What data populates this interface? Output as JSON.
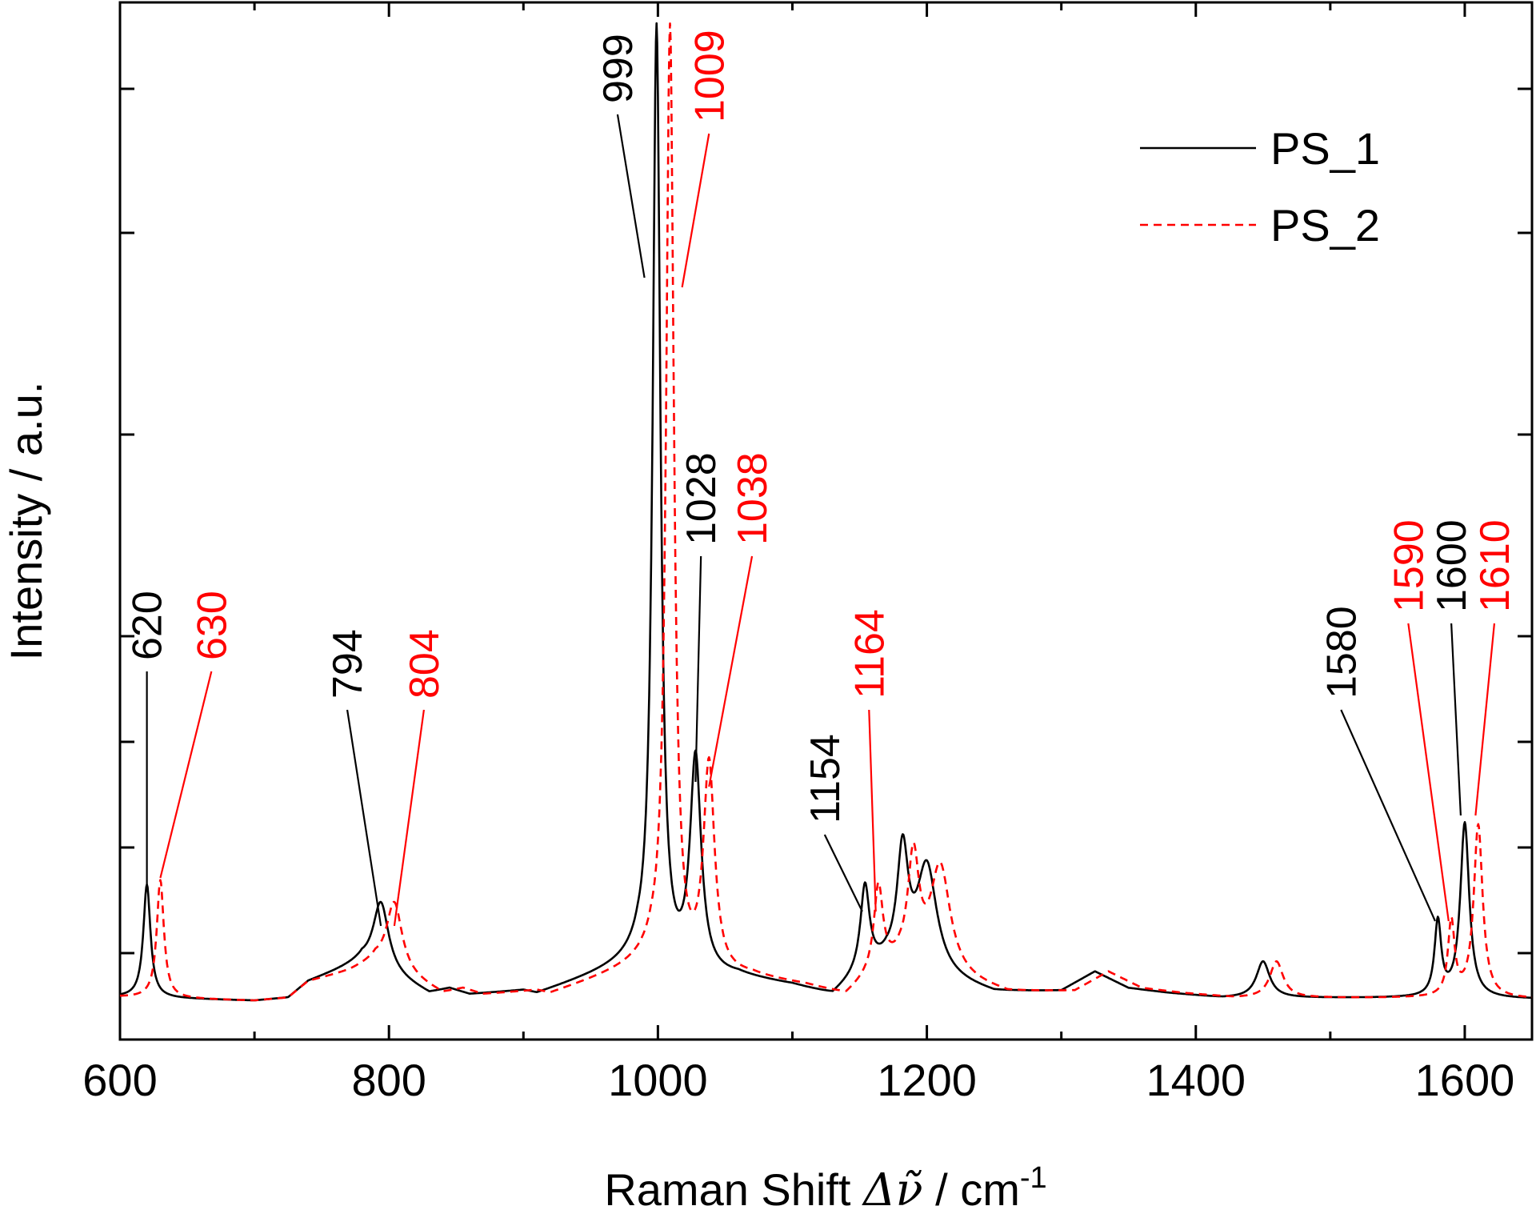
{
  "chart_data": {
    "type": "line",
    "xlabel": "Raman Shift Δν̃ / cm-1",
    "xlabel_parts": {
      "main": "Raman Shift ",
      "symbol": "Δ",
      "nu": "ν̃",
      "unit": " / cm",
      "sup": "-1"
    },
    "ylabel": "Intensity / a.u.",
    "xlim": [
      600,
      1650
    ],
    "ylim": [
      -0.04,
      1.04
    ],
    "x_ticks": [
      600,
      800,
      1000,
      1200,
      1400,
      1600
    ],
    "x_tick_labels": [
      "600",
      "800",
      "1000",
      "1200",
      "1400",
      "1600"
    ],
    "x_minor_ticks": [
      700,
      900,
      1100,
      1300,
      1500
    ],
    "y_ticks": [
      0.05,
      0.16,
      0.27,
      0.38,
      0.59,
      0.8,
      0.95
    ],
    "y_tick_labels_visible": false,
    "grid": false,
    "legend_position": "top-right",
    "series": [
      {
        "name": "PS_1",
        "color": "#000000",
        "line_style": "solid",
        "baseline": [
          [
            600,
            0.004
          ],
          [
            650,
            0.002
          ],
          [
            700,
            0.0
          ],
          [
            725,
            0.003
          ],
          [
            740,
            0.02
          ],
          [
            760,
            0.03
          ],
          [
            780,
            0.04
          ],
          [
            830,
            0.007
          ],
          [
            845,
            0.012
          ],
          [
            860,
            0.006
          ],
          [
            900,
            0.01
          ],
          [
            910,
            0.007
          ],
          [
            985,
            0.04
          ],
          [
            1000,
            0.02
          ],
          [
            1015,
            0.02
          ],
          [
            1060,
            0.024
          ],
          [
            1100,
            0.015
          ],
          [
            1130,
            0.004
          ],
          [
            1150,
            0.025
          ],
          [
            1170,
            0.035
          ],
          [
            1250,
            0.008
          ],
          [
            1300,
            0.01
          ],
          [
            1325,
            0.03
          ],
          [
            1350,
            0.013
          ],
          [
            1380,
            0.008
          ],
          [
            1420,
            0.003
          ],
          [
            1480,
            0.003
          ],
          [
            1550,
            0.003
          ],
          [
            1650,
            0.002
          ]
        ],
        "peaks": [
          {
            "x": 620,
            "h": 0.118,
            "w": 3.2
          },
          {
            "x": 759,
            "h": 0.0,
            "w": 10
          },
          {
            "x": 794,
            "h": 0.072,
            "w": 7
          },
          {
            "x": 999,
            "h": 0.99,
            "w": 3.5
          },
          {
            "x": 1028,
            "h": 0.225,
            "w": 5
          },
          {
            "x": 1154,
            "h": 0.088,
            "w": 4
          },
          {
            "x": 1182,
            "h": 0.118,
            "w": 5
          },
          {
            "x": 1200,
            "h": 0.112,
            "w": 9
          },
          {
            "x": 1450,
            "h": 0.038,
            "w": 6
          },
          {
            "x": 1580,
            "h": 0.078,
            "w": 3
          },
          {
            "x": 1600,
            "h": 0.182,
            "w": 4
          }
        ]
      },
      {
        "name": "PS_2",
        "color": "#ff0000",
        "line_style": "dashed",
        "baseline": [
          [
            600,
            0.004
          ],
          [
            650,
            0.002
          ],
          [
            700,
            0.0
          ],
          [
            725,
            0.003
          ],
          [
            740,
            0.02
          ],
          [
            770,
            0.03
          ],
          [
            790,
            0.04
          ],
          [
            840,
            0.007
          ],
          [
            855,
            0.012
          ],
          [
            870,
            0.006
          ],
          [
            910,
            0.01
          ],
          [
            920,
            0.007
          ],
          [
            995,
            0.04
          ],
          [
            1010,
            0.02
          ],
          [
            1025,
            0.02
          ],
          [
            1070,
            0.024
          ],
          [
            1110,
            0.015
          ],
          [
            1140,
            0.004
          ],
          [
            1160,
            0.025
          ],
          [
            1180,
            0.035
          ],
          [
            1260,
            0.008
          ],
          [
            1310,
            0.01
          ],
          [
            1335,
            0.03
          ],
          [
            1360,
            0.013
          ],
          [
            1390,
            0.008
          ],
          [
            1430,
            0.003
          ],
          [
            1490,
            0.003
          ],
          [
            1560,
            0.003
          ],
          [
            1650,
            0.002
          ]
        ],
        "peaks": [
          {
            "x": 630,
            "h": 0.123,
            "w": 3.2
          },
          {
            "x": 804,
            "h": 0.072,
            "w": 7
          },
          {
            "x": 1009,
            "h": 0.99,
            "w": 3.5
          },
          {
            "x": 1038,
            "h": 0.218,
            "w": 5
          },
          {
            "x": 1164,
            "h": 0.088,
            "w": 4
          },
          {
            "x": 1190,
            "h": 0.112,
            "w": 5
          },
          {
            "x": 1210,
            "h": 0.112,
            "w": 9
          },
          {
            "x": 1460,
            "h": 0.038,
            "w": 6
          },
          {
            "x": 1590,
            "h": 0.078,
            "w": 3
          },
          {
            "x": 1610,
            "h": 0.18,
            "w": 4
          }
        ]
      }
    ],
    "annotations": [
      {
        "text": "620",
        "color": "#000000",
        "peak_x": 620,
        "peak_y": 0.118,
        "label_x": 620,
        "label_y": 0.35
      },
      {
        "text": "630",
        "color": "#ff0000",
        "peak_x": 630,
        "peak_y": 0.125,
        "label_x": 668,
        "label_y": 0.35
      },
      {
        "text": "794",
        "color": "#000000",
        "peak_x": 794,
        "peak_y": 0.075,
        "label_x": 769,
        "label_y": 0.31
      },
      {
        "text": "804",
        "color": "#ff0000",
        "peak_x": 804,
        "peak_y": 0.075,
        "label_x": 826,
        "label_y": 0.31
      },
      {
        "text": "999",
        "color": "#000000",
        "peak_x": 990,
        "peak_y": 0.75,
        "label_x": 970,
        "label_y": 0.93
      },
      {
        "text": "1009",
        "color": "#ff0000",
        "peak_x": 1018,
        "peak_y": 0.74,
        "label_x": 1038,
        "label_y": 0.91
      },
      {
        "text": "1028",
        "color": "#000000",
        "peak_x": 1028,
        "peak_y": 0.225,
        "label_x": 1032,
        "label_y": 0.47
      },
      {
        "text": "1038",
        "color": "#ff0000",
        "peak_x": 1038,
        "peak_y": 0.22,
        "label_x": 1070,
        "label_y": 0.47
      },
      {
        "text": "1154",
        "color": "#000000",
        "peak_x": 1152,
        "peak_y": 0.09,
        "label_x": 1124,
        "label_y": 0.18
      },
      {
        "text": "1164",
        "color": "#ff0000",
        "peak_x": 1162,
        "peak_y": 0.09,
        "label_x": 1157,
        "label_y": 0.31
      },
      {
        "text": "1580",
        "color": "#000000",
        "peak_x": 1578,
        "peak_y": 0.08,
        "label_x": 1508,
        "label_y": 0.31
      },
      {
        "text": "1590",
        "color": "#ff0000",
        "peak_x": 1588,
        "peak_y": 0.08,
        "label_x": 1558,
        "label_y": 0.4
      },
      {
        "text": "1600",
        "color": "#000000",
        "peak_x": 1597,
        "peak_y": 0.19,
        "label_x": 1590,
        "label_y": 0.4
      },
      {
        "text": "1610",
        "color": "#ff0000",
        "peak_x": 1608,
        "peak_y": 0.19,
        "label_x": 1622,
        "label_y": 0.4
      }
    ]
  }
}
